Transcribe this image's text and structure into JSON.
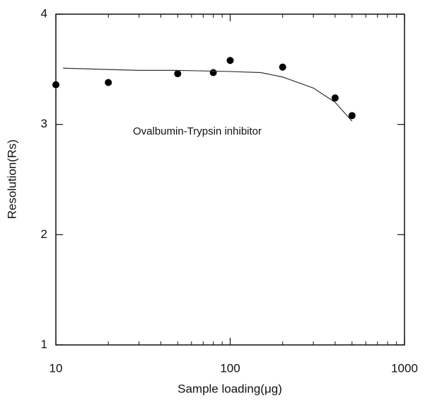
{
  "chart_data": {
    "type": "scatter",
    "xlabel": "Sample loading(μg)",
    "ylabel": "Resolution(Rs)",
    "annotation": "Ovalbumin-Trypsin inhibitor",
    "xscale": "log",
    "xlim": [
      10,
      1000
    ],
    "xticks": [
      10,
      100,
      1000
    ],
    "xminorticks": [
      20,
      30,
      40,
      50,
      60,
      70,
      80,
      90,
      200,
      300,
      400,
      500,
      600,
      700,
      800,
      900
    ],
    "ylim": [
      1,
      4
    ],
    "yticks": [
      1,
      2,
      3,
      4
    ],
    "series": [
      {
        "type": "scatter",
        "color": "#000000",
        "x": [
          10,
          20,
          50,
          80,
          100,
          200,
          400,
          500
        ],
        "values": [
          3.36,
          3.38,
          3.46,
          3.47,
          3.58,
          3.52,
          3.24,
          3.08
        ]
      },
      {
        "type": "line",
        "color": "#333333",
        "x": [
          11,
          30,
          50,
          100,
          150,
          200,
          300,
          400,
          500
        ],
        "values": [
          3.51,
          3.49,
          3.49,
          3.48,
          3.47,
          3.43,
          3.33,
          3.2,
          3.03
        ]
      }
    ]
  }
}
